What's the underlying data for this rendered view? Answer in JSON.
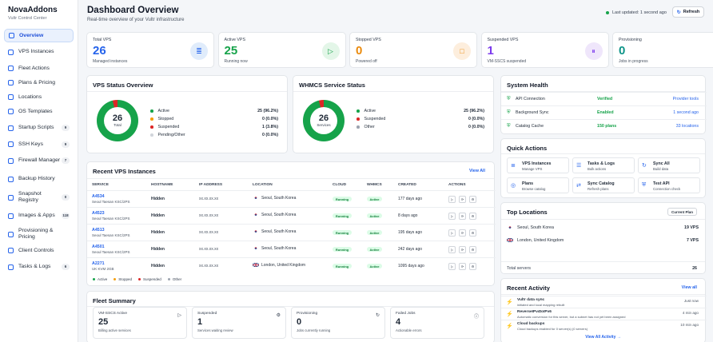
{
  "brand": {
    "title": "NovaAddons",
    "subtitle": "Vultr Control Center"
  },
  "nav": [
    {
      "label": "Overview",
      "icon": "grid-icon",
      "active": true
    },
    {
      "label": "VPS Instances",
      "icon": "server-icon"
    },
    {
      "label": "Fleet Actions",
      "icon": "layers-icon"
    },
    {
      "label": "Plans & Pricing",
      "icon": "tag-icon"
    },
    {
      "label": "Locations",
      "icon": "map-pin-icon"
    },
    {
      "label": "OS Templates",
      "icon": "disk-icon"
    },
    {
      "label": "Startup Scripts",
      "icon": "code-icon",
      "badge": "9"
    },
    {
      "label": "SSH Keys",
      "icon": "key-icon",
      "badge": "9"
    },
    {
      "label": "Firewall Manager",
      "icon": "shield-icon",
      "badge": "7"
    },
    {
      "label": "Backup History",
      "icon": "archive-icon"
    },
    {
      "label": "Snapshot Registry",
      "icon": "camera-icon",
      "badge": "0"
    },
    {
      "label": "Images & Apps",
      "icon": "image-icon",
      "badge": "118"
    },
    {
      "label": "Provisioning & Pricing",
      "icon": "settings-icon"
    },
    {
      "label": "Client Controls",
      "icon": "users-icon"
    },
    {
      "label": "Tasks & Logs",
      "icon": "list-icon",
      "badge": "6"
    }
  ],
  "header": {
    "title": "Dashboard Overview",
    "subtitle": "Real-time overview of your Vultr infrastructure",
    "updated": "Last updated: 1 second ago",
    "refresh": "Refresh"
  },
  "stats": [
    {
      "label": "Total VPS",
      "value": "26",
      "sub": "Managed instances",
      "color": "#2563eb",
      "icon": "≣",
      "icon_bg": "#e0ecfb"
    },
    {
      "label": "Active VPS",
      "value": "25",
      "sub": "Running now",
      "color": "#16a34a",
      "icon": "▷",
      "icon_bg": "#e3f6e8"
    },
    {
      "label": "Stopped VPS",
      "value": "0",
      "sub": "Powered off",
      "color": "#ea8a0c",
      "icon": "□",
      "icon_bg": "#fdeedd"
    },
    {
      "label": "Suspended VPS",
      "value": "1",
      "sub": "VM-SSCS suspended",
      "color": "#7c3aed",
      "icon": "⏸",
      "icon_bg": "#efe6fb"
    },
    {
      "label": "Provisioning",
      "value": "0",
      "sub": "Jobs in progress",
      "color": "#0d9488",
      "icon": "⊙",
      "icon_bg": "#dcf5f1"
    }
  ],
  "vps_status": {
    "title": "VPS Status Overview",
    "total": "26",
    "total_label": "Total",
    "legend": [
      {
        "label": "Active",
        "value": "25 (96.2%)",
        "color": "#16a34a"
      },
      {
        "label": "Stopped",
        "value": "0 (0.0%)",
        "color": "#f59e0b"
      },
      {
        "label": "Suspended",
        "value": "1 (3.8%)",
        "color": "#dc2626"
      },
      {
        "label": "Pending/Other",
        "value": "0 (0.0%)",
        "color": "#d1d5db"
      }
    ]
  },
  "whmcs_status": {
    "title": "WHMCS Service Status",
    "total": "26",
    "total_label": "Services",
    "legend": [
      {
        "label": "Active",
        "value": "25 (96.2%)",
        "color": "#16a34a"
      },
      {
        "label": "Suspended",
        "value": "0 (0.0%)",
        "color": "#dc2626"
      },
      {
        "label": "Other",
        "value": "0 (0.0%)",
        "color": "#9ca3af"
      }
    ]
  },
  "recent": {
    "title": "Recent VPS Instances",
    "view_all": "View All",
    "columns": [
      "SERVICE",
      "HOSTNAME",
      "IP ADDRESS",
      "LOCATION",
      "CLOUD",
      "WHMCS",
      "CREATED",
      "ACTIONS"
    ],
    "rows": [
      {
        "id": "A4534",
        "plan": "Seoul Taesan KSC/2PS",
        "host": "Hidden",
        "ip": "xx.xx.xx.xx",
        "loc": "Seoul, South Korea",
        "flag": "kr",
        "cloud": "Running",
        "whmcs": "Active",
        "created": "177 days ago"
      },
      {
        "id": "A4523",
        "plan": "Seoul Taesan KSC/2PS",
        "host": "Hidden",
        "ip": "xx.xx.xx.xx",
        "loc": "Seoul, South Korea",
        "flag": "kr",
        "cloud": "Running",
        "whmcs": "Active",
        "created": "8 days ago"
      },
      {
        "id": "A4513",
        "plan": "Seoul Taesan KSC/2PS",
        "host": "Hidden",
        "ip": "xx.xx.xx.xx",
        "loc": "Seoul, South Korea",
        "flag": "kr",
        "cloud": "Running",
        "whmcs": "Active",
        "created": "195 days ago"
      },
      {
        "id": "A4501",
        "plan": "Seoul Taesan KSC/2PS",
        "host": "Hidden",
        "ip": "xx.xx.xx.xx",
        "loc": "Seoul, South Korea",
        "flag": "kr",
        "cloud": "Running",
        "whmcs": "Active",
        "created": "242 days ago"
      },
      {
        "id": "A2271",
        "plan": "UK KVM 2GB",
        "host": "Hidden",
        "ip": "xx.xx.xx.xx",
        "loc": "London, United Kingdom",
        "flag": "gb",
        "cloud": "Running",
        "whmcs": "Active",
        "created": "1095 days ago"
      }
    ],
    "legend": [
      {
        "label": "Active",
        "color": "#16a34a"
      },
      {
        "label": "Stopped",
        "color": "#f59e0b"
      },
      {
        "label": "Suspended",
        "color": "#dc2626"
      },
      {
        "label": "Other",
        "color": "#9ca3af"
      }
    ]
  },
  "fleet": {
    "title": "Fleet Summary",
    "cards": [
      {
        "label": "VM-SSCS Active",
        "value": "25",
        "sub": "Billing active services",
        "icon": "▷"
      },
      {
        "label": "Suspended",
        "value": "1",
        "sub": "Services waiting review",
        "icon": "⚙"
      },
      {
        "label": "Provisioning",
        "value": "0",
        "sub": "Jobs currently running",
        "icon": "↻"
      },
      {
        "label": "Failed Jobs",
        "value": "4",
        "sub": "Actionable errors",
        "icon": "ⓘ"
      }
    ]
  },
  "health": {
    "title": "System Health",
    "rows": [
      {
        "label": "API Connection",
        "status": "Verified",
        "link": "Provider tools"
      },
      {
        "label": "Background Sync",
        "status": "Enabled",
        "link": "1 second ago"
      },
      {
        "label": "Catalog Cache",
        "status": "150 plans",
        "link": "33 locations"
      }
    ]
  },
  "quick": {
    "title": "Quick Actions",
    "items": [
      {
        "title": "VPS Instances",
        "sub": "Manage VPS",
        "icon": "≣"
      },
      {
        "title": "Tasks & Logs",
        "sub": "Bulk actions",
        "icon": "☰"
      },
      {
        "title": "Sync All",
        "sub": "Build data",
        "icon": "↻"
      },
      {
        "title": "Plans",
        "sub": "Browse catalog",
        "icon": "◎"
      },
      {
        "title": "Sync Catalog",
        "sub": "Refresh plans",
        "icon": "⇄"
      },
      {
        "title": "Test API",
        "sub": "Connection check",
        "icon": "⛨"
      }
    ]
  },
  "locations": {
    "title": "Top Locations",
    "button": "Current Plan",
    "rows": [
      {
        "name": "Seoul, South Korea",
        "count": "19 VPS",
        "flag": "kr"
      },
      {
        "name": "London, United Kingdom",
        "count": "7 VPS",
        "flag": "gb"
      }
    ],
    "total_label": "Total servers",
    "total_value": "26"
  },
  "activity": {
    "title": "Recent Activity",
    "view_all": "View all",
    "items": [
      {
        "title": "Vultr data sync",
        "desc": "initiated and local mapping rebuilt",
        "time": "Just now"
      },
      {
        "title": "ReverseIPv4toIPv6",
        "desc": "Automatic conversion for this server, but a subnet has not yet been assigned",
        "time": "4 min ago"
      },
      {
        "title": "Cloud backups",
        "desc": "Cloud backups enabled for 0 server(s) (0 servers)",
        "time": "10 min ago"
      }
    ],
    "footer": "View All Activity →"
  }
}
